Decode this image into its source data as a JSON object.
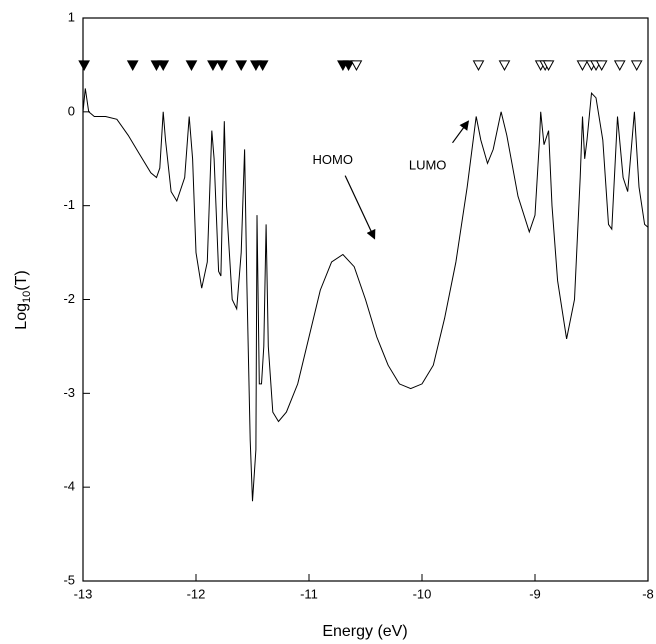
{
  "chart_data": {
    "type": "line",
    "x_label": "Energy (eV)",
    "y_label": [
      "Log",
      "10",
      "(T)"
    ],
    "annotations": [
      "HOMO",
      "LUMO"
    ],
    "xlim": [
      -13,
      -8
    ],
    "xticks": [
      -13,
      -12,
      -11,
      -10,
      -9,
      -8
    ],
    "ylim": [
      -5,
      1
    ],
    "yticks": [
      -5,
      -4,
      -3,
      -2,
      -1,
      0,
      1
    ],
    "series": [
      {
        "type": "line",
        "color": "#000000",
        "x": [
          -13.0,
          -12.98,
          -12.95,
          -12.9,
          -12.8,
          -12.7,
          -12.6,
          -12.5,
          -12.4,
          -12.35,
          -12.32,
          -12.29,
          -12.27,
          -12.22,
          -12.17,
          -12.1,
          -12.06,
          -12.03,
          -12.0,
          -11.95,
          -11.9,
          -11.86,
          -11.84,
          -11.8,
          -11.78,
          -11.75,
          -11.73,
          -11.68,
          -11.64,
          -11.6,
          -11.57,
          -11.55,
          -11.52,
          -11.5,
          -11.47,
          -11.46,
          -11.44,
          -11.42,
          -11.4,
          -11.38,
          -11.36,
          -11.32,
          -11.27,
          -11.2,
          -11.1,
          -11.0,
          -10.9,
          -10.8,
          -10.7,
          -10.6,
          -10.5,
          -10.4,
          -10.3,
          -10.2,
          -10.1,
          -10.0,
          -9.9,
          -9.8,
          -9.7,
          -9.6,
          -9.52,
          -9.48,
          -9.42,
          -9.37,
          -9.3,
          -9.25,
          -9.15,
          -9.05,
          -9.0,
          -8.96,
          -8.95,
          -8.92,
          -8.88,
          -8.85,
          -8.8,
          -8.72,
          -8.65,
          -8.6,
          -8.58,
          -8.56,
          -8.54,
          -8.5,
          -8.46,
          -8.4,
          -8.35,
          -8.32,
          -8.27,
          -8.22,
          -8.18,
          -8.12,
          -8.08,
          -8.03,
          -8.0
        ],
        "values": [
          0.0,
          0.25,
          0.0,
          -0.05,
          -0.05,
          -0.08,
          -0.25,
          -0.45,
          -0.65,
          -0.7,
          -0.6,
          0.0,
          -0.3,
          -0.85,
          -0.95,
          -0.7,
          -0.05,
          -0.5,
          -1.5,
          -1.88,
          -1.6,
          -0.2,
          -0.5,
          -1.7,
          -1.75,
          -0.1,
          -1.0,
          -2.0,
          -2.1,
          -1.5,
          -0.4,
          -1.8,
          -3.5,
          -4.15,
          -3.6,
          -1.1,
          -2.9,
          -2.9,
          -2.5,
          -1.2,
          -2.5,
          -3.2,
          -3.3,
          -3.2,
          -2.9,
          -2.4,
          -1.9,
          -1.6,
          -1.52,
          -1.65,
          -2.0,
          -2.4,
          -2.7,
          -2.9,
          -2.95,
          -2.9,
          -2.7,
          -2.2,
          -1.6,
          -0.8,
          -0.05,
          -0.3,
          -0.55,
          -0.4,
          0.0,
          -0.25,
          -0.9,
          -1.28,
          -1.1,
          -0.3,
          0.0,
          -0.35,
          -0.2,
          -1.0,
          -1.8,
          -2.42,
          -2.0,
          -0.7,
          -0.05,
          -0.5,
          -0.3,
          0.2,
          0.15,
          -0.3,
          -1.2,
          -1.25,
          -0.05,
          -0.7,
          -0.85,
          0.0,
          -0.8,
          -1.2,
          -1.23
        ]
      },
      {
        "type": "scatter",
        "color": "#000000",
        "marker": "filled-triangle-down",
        "x": [
          -12.99,
          -12.56,
          -12.35,
          -12.29,
          -12.04,
          -11.85,
          -11.77,
          -11.6,
          -11.47,
          -11.41,
          -10.7,
          -10.65
        ],
        "values": [
          0.5,
          0.5,
          0.5,
          0.5,
          0.5,
          0.5,
          0.5,
          0.5,
          0.5,
          0.5,
          0.5,
          0.5
        ]
      },
      {
        "type": "scatter",
        "color": "#000000",
        "marker": "open-triangle-down",
        "x": [
          -10.58,
          -9.5,
          -9.27,
          -8.95,
          -8.91,
          -8.88,
          -8.58,
          -8.5,
          -8.46,
          -8.41,
          -8.25,
          -8.1
        ],
        "values": [
          0.5,
          0.5,
          0.5,
          0.5,
          0.5,
          0.5,
          0.5,
          0.5,
          0.5,
          0.5,
          0.5,
          0.5
        ]
      }
    ]
  }
}
